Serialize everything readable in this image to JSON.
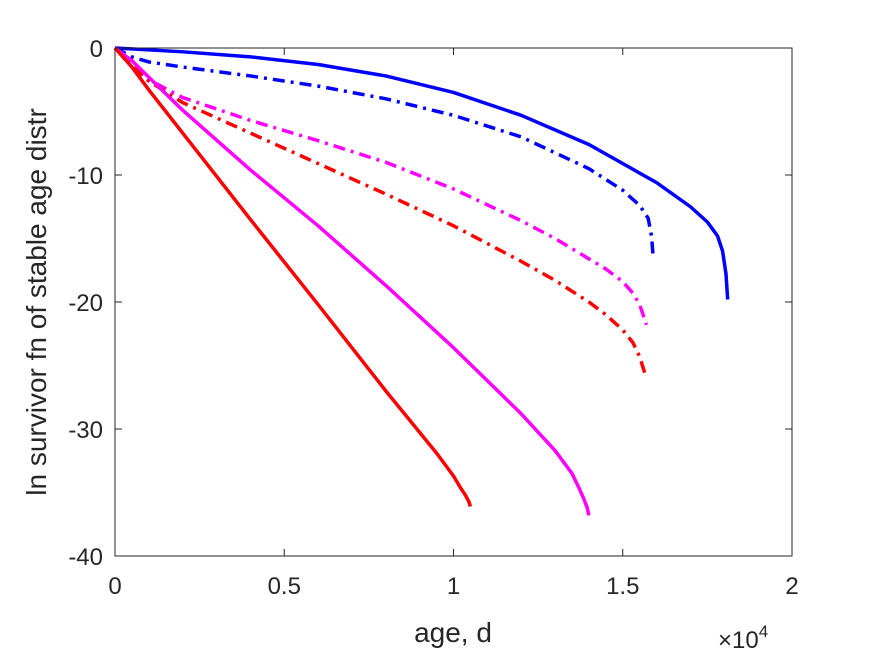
{
  "chart_data": {
    "type": "line",
    "title": "",
    "xlabel": "age, d",
    "ylabel": "ln survivor fn of stable age distr",
    "x_exponent_label": {
      "base": "×10",
      "exp": "4"
    },
    "xlim": [
      0,
      20000
    ],
    "ylim": [
      -40,
      0
    ],
    "x_ticks": [
      0,
      5000,
      10000,
      15000,
      20000
    ],
    "x_tick_labels": [
      "0",
      "0.5",
      "1",
      "1.5",
      "2"
    ],
    "y_ticks": [
      0,
      -10,
      -20,
      -30,
      -40
    ],
    "y_tick_labels": [
      "0",
      "-10",
      "-20",
      "-30",
      "-40"
    ],
    "grid": false,
    "box": true,
    "series": [
      {
        "color": "#0000ff",
        "style": "solid",
        "x": [
          0,
          2000,
          4000,
          6000,
          8000,
          10000,
          12000,
          14000,
          16000,
          17000,
          17500,
          17800,
          17950,
          18050,
          18100
        ],
        "y": [
          0,
          -0.3,
          -0.7,
          -1.3,
          -2.2,
          -3.5,
          -5.3,
          -7.6,
          -10.6,
          -12.5,
          -13.7,
          -14.8,
          -16.0,
          -17.8,
          -19.8
        ]
      },
      {
        "color": "#0000ff",
        "style": "dashdot",
        "x": [
          0,
          500,
          1000,
          2000,
          4000,
          6000,
          8000,
          10000,
          12000,
          14000,
          15000,
          15500,
          15750,
          15850,
          15900
        ],
        "y": [
          0,
          -0.7,
          -1.1,
          -1.5,
          -2.2,
          -3.0,
          -4.0,
          -5.3,
          -7.0,
          -9.5,
          -11.2,
          -12.4,
          -13.4,
          -14.8,
          -16.5
        ]
      },
      {
        "color": "#ff00ff",
        "style": "dashdot",
        "x": [
          0,
          500,
          1000,
          2000,
          4000,
          6000,
          8000,
          10000,
          12000,
          13000,
          14000,
          14500,
          15000,
          15300,
          15500,
          15600,
          15700
        ],
        "y": [
          0,
          -1.2,
          -2.5,
          -3.9,
          -5.7,
          -7.3,
          -9.0,
          -11.1,
          -13.6,
          -15.0,
          -16.6,
          -17.4,
          -18.4,
          -19.3,
          -20.2,
          -21.0,
          -21.8
        ]
      },
      {
        "color": "#ff0000",
        "style": "dashdot",
        "x": [
          0,
          500,
          1000,
          2000,
          4000,
          6000,
          8000,
          10000,
          12000,
          13000,
          14000,
          14500,
          15000,
          15300,
          15500,
          15650
        ],
        "y": [
          0,
          -1.4,
          -2.6,
          -4.3,
          -6.7,
          -9.1,
          -11.5,
          -14.0,
          -16.8,
          -18.3,
          -20.0,
          -21.0,
          -22.2,
          -23.2,
          -24.3,
          -25.6
        ]
      },
      {
        "color": "#ff00ff",
        "style": "solid",
        "x": [
          0,
          500,
          1000,
          2000,
          4000,
          6000,
          8000,
          10000,
          12000,
          13000,
          13500,
          13700,
          13850,
          13950,
          14000
        ],
        "y": [
          0,
          -1.0,
          -2.3,
          -4.9,
          -9.6,
          -14.0,
          -18.7,
          -23.6,
          -28.8,
          -31.7,
          -33.5,
          -34.6,
          -35.5,
          -36.2,
          -36.8
        ]
      },
      {
        "color": "#ff0000",
        "style": "solid",
        "x": [
          0,
          500,
          1000,
          2000,
          4000,
          6000,
          8000,
          9500,
          10000,
          10200,
          10350,
          10450,
          10500
        ],
        "y": [
          0,
          -1.5,
          -3.3,
          -6.7,
          -13.5,
          -20.2,
          -27.0,
          -31.9,
          -33.7,
          -34.6,
          -35.2,
          -35.7,
          -36.1
        ]
      }
    ]
  }
}
